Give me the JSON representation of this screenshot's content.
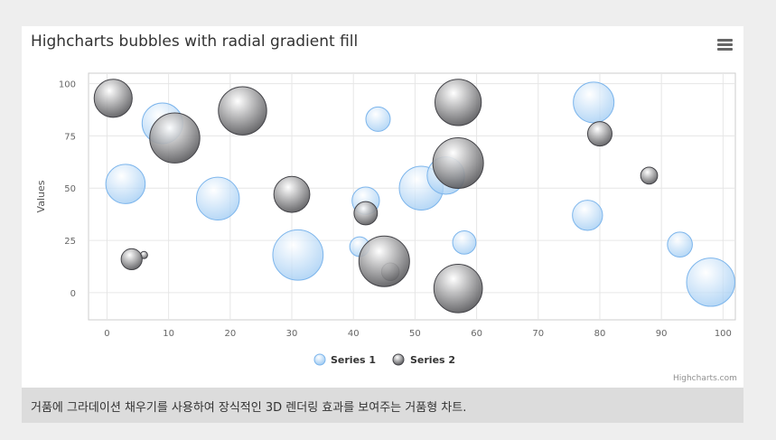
{
  "chart_data": {
    "type": "bubble",
    "title": "Highcharts bubbles with radial gradient fill",
    "ylabel": "Values",
    "xlabel": "",
    "xlim": [
      -3,
      102
    ],
    "ylim": [
      -13,
      105
    ],
    "xticks": [
      0,
      10,
      20,
      30,
      40,
      50,
      60,
      70,
      80,
      90,
      100
    ],
    "yticks": [
      0,
      25,
      50,
      75,
      100
    ],
    "grid": true,
    "legend_position": "bottom",
    "series": [
      {
        "name": "Series 1",
        "color": "#7cb5ec",
        "points": [
          {
            "x": 9,
            "y": 81,
            "z": 63
          },
          {
            "x": 98,
            "y": 5,
            "z": 89
          },
          {
            "x": 51,
            "y": 50,
            "z": 73
          },
          {
            "x": 41,
            "y": 22,
            "z": 14
          },
          {
            "x": 58,
            "y": 24,
            "z": 20
          },
          {
            "x": 78,
            "y": 37,
            "z": 34
          },
          {
            "x": 55,
            "y": 56,
            "z": 53
          },
          {
            "x": 18,
            "y": 45,
            "z": 70
          },
          {
            "x": 42,
            "y": 44,
            "z": 28
          },
          {
            "x": 3,
            "y": 52,
            "z": 59
          },
          {
            "x": 31,
            "y": 18,
            "z": 97
          },
          {
            "x": 79,
            "y": 91,
            "z": 63
          },
          {
            "x": 93,
            "y": 23,
            "z": 23
          },
          {
            "x": 44,
            "y": 83,
            "z": 22
          }
        ]
      },
      {
        "name": "Series 2",
        "color": "#434348",
        "points": [
          {
            "x": 42,
            "y": 38,
            "z": 20
          },
          {
            "x": 6,
            "y": 18,
            "z": 1
          },
          {
            "x": 1,
            "y": 93,
            "z": 55
          },
          {
            "x": 57,
            "y": 2,
            "z": 90
          },
          {
            "x": 80,
            "y": 76,
            "z": 22
          },
          {
            "x": 11,
            "y": 74,
            "z": 96
          },
          {
            "x": 88,
            "y": 56,
            "z": 10
          },
          {
            "x": 30,
            "y": 47,
            "z": 49
          },
          {
            "x": 57,
            "y": 62,
            "z": 98
          },
          {
            "x": 4,
            "y": 16,
            "z": 16
          },
          {
            "x": 46,
            "y": 10,
            "z": 11
          },
          {
            "x": 22,
            "y": 87,
            "z": 89
          },
          {
            "x": 57,
            "y": 91,
            "z": 82
          },
          {
            "x": 45,
            "y": 15,
            "z": 98
          }
        ]
      }
    ]
  },
  "menu": {
    "icon": "hamburger-menu-icon"
  },
  "credits": "Highcharts.com",
  "caption": "거품에 그라데이션 채우기를 사용하여 장식적인 3D 렌더링 효과를 보여주는 거품형 차트."
}
